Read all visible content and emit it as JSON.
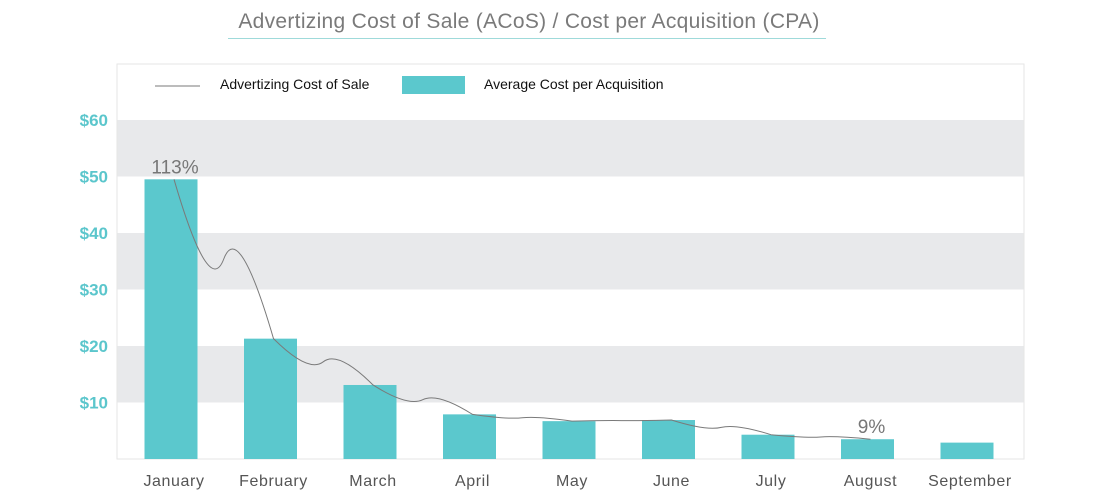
{
  "title": "Advertizing Cost of Sale (ACoS) / Cost per Acquisition (CPA)",
  "colors": {
    "bar": "#5bc8cd",
    "line": "#7a7a7a",
    "band": "#e8e9eb",
    "ytick": "#5bc6cc",
    "frame": "#e6e6e6"
  },
  "chart_data": {
    "type": "bar",
    "title": "Advertizing Cost of Sale (ACoS) / Cost per Acquisition (CPA)",
    "categories": [
      "January",
      "February",
      "March",
      "April",
      "May",
      "June",
      "July",
      "August",
      "September"
    ],
    "series": [
      {
        "name": "Average Cost per Acquisition",
        "type": "bar",
        "values": [
          49.5,
          21.3,
          13.1,
          7.9,
          6.7,
          6.9,
          4.3,
          3.5,
          2.9
        ]
      },
      {
        "name": "Advertizing Cost of Sale",
        "type": "line",
        "values": [
          49.5,
          21.3,
          13.1,
          7.9,
          6.7,
          6.9,
          4.3,
          3.5,
          null
        ]
      }
    ],
    "ylim": [
      0,
      60
    ],
    "yticks": [
      10,
      20,
      30,
      40,
      50,
      60
    ],
    "ytick_labels": [
      "$10",
      "$20",
      "$30",
      "$40",
      "$50",
      "$60"
    ],
    "annotations": [
      {
        "category": "January",
        "text": "113%"
      },
      {
        "category": "August",
        "text": "9%"
      }
    ],
    "legend": {
      "position": "top-left",
      "entries": [
        "Advertizing Cost of Sale",
        "Average Cost per Acquisition"
      ]
    },
    "grid": "alternating horizontal bands"
  }
}
